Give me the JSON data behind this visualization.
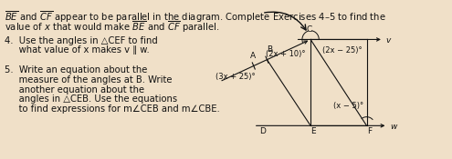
{
  "bg_color": "#f0e0c8",
  "text_color": "#111111",
  "font_size_main": 7.2,
  "font_size_small": 6.0,
  "font_size_label": 6.5,
  "angle_3x25": "(3x + 25)°",
  "angle_2x10": "(2x + 10)°",
  "angle_2x25": "(2x − 25)°",
  "angle_x5": "(x − 5)°",
  "label_A": "A",
  "label_B": "B",
  "label_C": "C",
  "label_D": "D",
  "label_E": "E",
  "label_F": "F",
  "label_v": "v",
  "label_w": "w",
  "ex4_1": "4.  Use the angles in △CEF to find",
  "ex4_2": "     what value of x makes v ∥ w.",
  "ex5_1": "5.  Write an equation about the",
  "ex5_2": "     measure of the angles at B. Write",
  "ex5_3": "     another equation about the",
  "ex5_4": "     angles in △CEB. Use the equations",
  "ex5_5": "     to find expressions for m∠CEB and m∠CBE.",
  "header1": " and  appear to be parallel in the diagram. Complete Exercises 4–5 to find the",
  "header2": "value of x that would make  and  parallel."
}
